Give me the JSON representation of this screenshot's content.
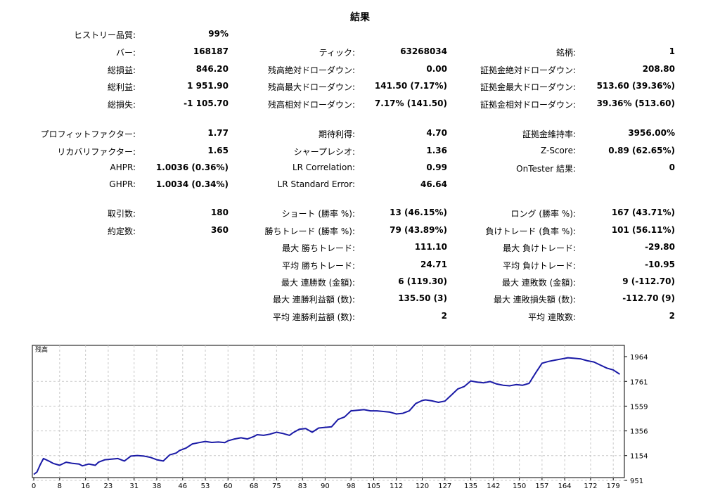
{
  "title": "結果",
  "col1": [
    {
      "label": "ヒストリー品質:",
      "value": "99%"
    },
    {
      "label": "バー:",
      "value": "168187"
    },
    {
      "label": "総損益:",
      "value": "846.20"
    },
    {
      "label": "総利益:",
      "value": "1 951.90"
    },
    {
      "label": "総損失:",
      "value": "-1 105.70"
    },
    {
      "label": "プロフィットファクター:",
      "value": "1.77"
    },
    {
      "label": "リカバリファクター:",
      "value": "1.65"
    },
    {
      "label": "AHPR:",
      "value": "1.0036 (0.36%)"
    },
    {
      "label": "GHPR:",
      "value": "1.0034 (0.34%)"
    },
    {
      "label": "取引数:",
      "value": "180"
    },
    {
      "label": "約定数:",
      "value": "360"
    }
  ],
  "col2": [
    {
      "label": "ティック:",
      "value": "63268034"
    },
    {
      "label": "残高絶対ドローダウン:",
      "value": "0.00"
    },
    {
      "label": "残高最大ドローダウン:",
      "value": "141.50 (7.17%)"
    },
    {
      "label": "残高相対ドローダウン:",
      "value": "7.17% (141.50)"
    },
    {
      "label": "期待利得:",
      "value": "4.70"
    },
    {
      "label": "シャープレシオ:",
      "value": "1.36"
    },
    {
      "label": "LR Correlation:",
      "value": "0.99"
    },
    {
      "label": "LR Standard Error:",
      "value": "46.64"
    },
    {
      "label": "ショート (勝率 %):",
      "value": "13 (46.15%)"
    },
    {
      "label": "勝ちトレード (勝率 %):",
      "value": "79 (43.89%)"
    },
    {
      "label": "最大 勝ちトレード:",
      "value": "111.10"
    },
    {
      "label": "平均 勝ちトレード:",
      "value": "24.71"
    },
    {
      "label": "最大 連勝数 (金額):",
      "value": "6 (119.30)"
    },
    {
      "label": "最大 連勝利益額 (数):",
      "value": "135.50 (3)"
    },
    {
      "label": "平均 連勝利益額 (数):",
      "value": "2"
    }
  ],
  "col3": [
    {
      "label": "銘柄:",
      "value": "1"
    },
    {
      "label": "証拠金絶対ドローダウン:",
      "value": "208.80"
    },
    {
      "label": "証拠金最大ドローダウン:",
      "value": "513.60 (39.36%)"
    },
    {
      "label": "証拠金相対ドローダウン:",
      "value": "39.36% (513.60)"
    },
    {
      "label": "証拠金維持率:",
      "value": "3956.00%"
    },
    {
      "label": "Z-Score:",
      "value": "0.89 (62.65%)"
    },
    {
      "label": "OnTester 結果:",
      "value": "0"
    },
    {
      "label": "ロング (勝率 %):",
      "value": "167 (43.71%)"
    },
    {
      "label": "負けトレード (負率 %):",
      "value": "101 (56.11%)"
    },
    {
      "label": "最大 負けトレード:",
      "value": "-29.80"
    },
    {
      "label": "平均 負けトレード:",
      "value": "-10.95"
    },
    {
      "label": "最大 連敗数 (金額):",
      "value": "9 (-112.70)"
    },
    {
      "label": "最大 連敗損失額 (数):",
      "value": "-112.70 (9)"
    },
    {
      "label": "平均 連敗数:",
      "value": "2"
    }
  ],
  "chart_data": {
    "type": "line",
    "title": "残高",
    "xlabel": "",
    "ylabel": "",
    "xlim": [
      0,
      182
    ],
    "ylim": [
      951,
      2050
    ],
    "grid": true,
    "x_ticks": [
      "0",
      "8",
      "16",
      "23",
      "31",
      "38",
      "46",
      "53",
      "60",
      "68",
      "75",
      "83",
      "90",
      "98",
      "105",
      "112",
      "120",
      "127",
      "135",
      "142",
      "150",
      "157",
      "164",
      "172",
      "179"
    ],
    "y_ticks": [
      "1964",
      "1761",
      "1559",
      "1356",
      "1154",
      "951"
    ],
    "line_color": "#1a1aa6",
    "series": [
      {
        "x": [
          0,
          1,
          2,
          3,
          5,
          6,
          8,
          10,
          12,
          14,
          15,
          17,
          19,
          20,
          22,
          24,
          26,
          28,
          30,
          32,
          34,
          36,
          38,
          40,
          42,
          44,
          45,
          47,
          49,
          51,
          53,
          55,
          57,
          59,
          60,
          62,
          64,
          66,
          68,
          69,
          71,
          73,
          75,
          77,
          79,
          80,
          82,
          84,
          86,
          88,
          90,
          92,
          94,
          96,
          98,
          100,
          102,
          104,
          106,
          108,
          110,
          112,
          114,
          116,
          118,
          120,
          121,
          123,
          125,
          127,
          129,
          131,
          133,
          135,
          137,
          139,
          141,
          143,
          145,
          147,
          149,
          151,
          153,
          155,
          157,
          159,
          161,
          163,
          165,
          167,
          169,
          171,
          173,
          175,
          177,
          179,
          181
        ],
        "values": [
          1000,
          1020,
          1080,
          1130,
          1105,
          1090,
          1075,
          1100,
          1090,
          1085,
          1070,
          1085,
          1075,
          1100,
          1120,
          1125,
          1130,
          1110,
          1150,
          1155,
          1150,
          1140,
          1120,
          1110,
          1160,
          1175,
          1195,
          1215,
          1250,
          1260,
          1270,
          1262,
          1265,
          1260,
          1275,
          1290,
          1300,
          1290,
          1310,
          1325,
          1320,
          1330,
          1345,
          1335,
          1320,
          1340,
          1370,
          1375,
          1345,
          1380,
          1385,
          1390,
          1450,
          1470,
          1520,
          1525,
          1530,
          1520,
          1520,
          1515,
          1510,
          1495,
          1500,
          1520,
          1580,
          1605,
          1610,
          1602,
          1590,
          1600,
          1650,
          1700,
          1720,
          1765,
          1755,
          1750,
          1760,
          1740,
          1730,
          1725,
          1735,
          1730,
          1745,
          1830,
          1910,
          1925,
          1935,
          1945,
          1955,
          1950,
          1945,
          1930,
          1920,
          1895,
          1870,
          1855,
          1820
        ]
      }
    ]
  }
}
